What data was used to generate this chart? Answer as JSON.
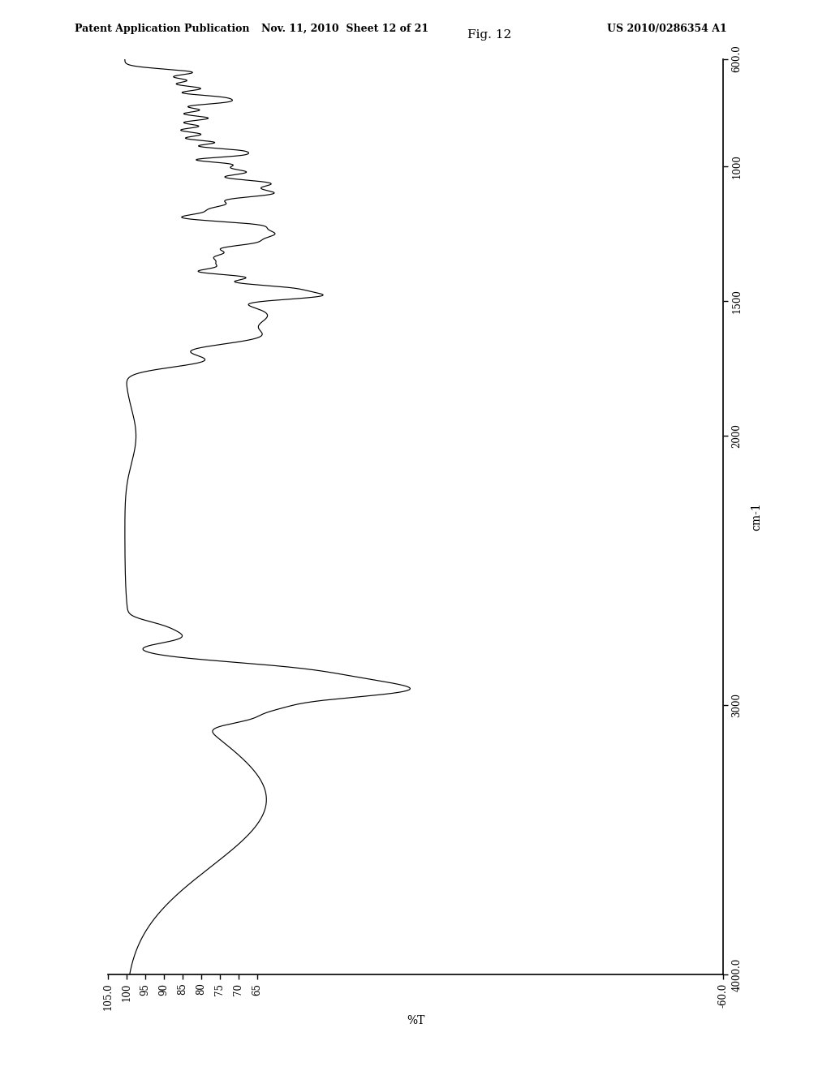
{
  "title": "Fig. 12",
  "header_left": "Patent Application Publication",
  "header_center": "Nov. 11, 2010  Sheet 12 of 21",
  "header_right": "US 2010/0286354 A1",
  "xlabel": "%T",
  "ylabel": "cm-1",
  "xlim_left": 105.0,
  "xlim_right": -60.0,
  "ylim_top": 600.0,
  "ylim_bottom": 4000.0,
  "xticks": [
    105,
    100,
    95,
    90,
    85,
    80,
    75,
    70,
    65,
    -60
  ],
  "xtick_labels": [
    "105.0",
    "100",
    "95",
    "90",
    "85",
    "80",
    "75",
    "70",
    "65",
    "-60.0"
  ],
  "yticks": [
    600,
    1000,
    1500,
    2000,
    3000,
    4000
  ],
  "ytick_labels": [
    "600.0",
    "1000",
    "1500",
    "2000",
    "3000",
    "4000.0"
  ],
  "background_color": "#ffffff",
  "line_color": "#000000",
  "fig_width": 10.24,
  "fig_height": 13.2
}
